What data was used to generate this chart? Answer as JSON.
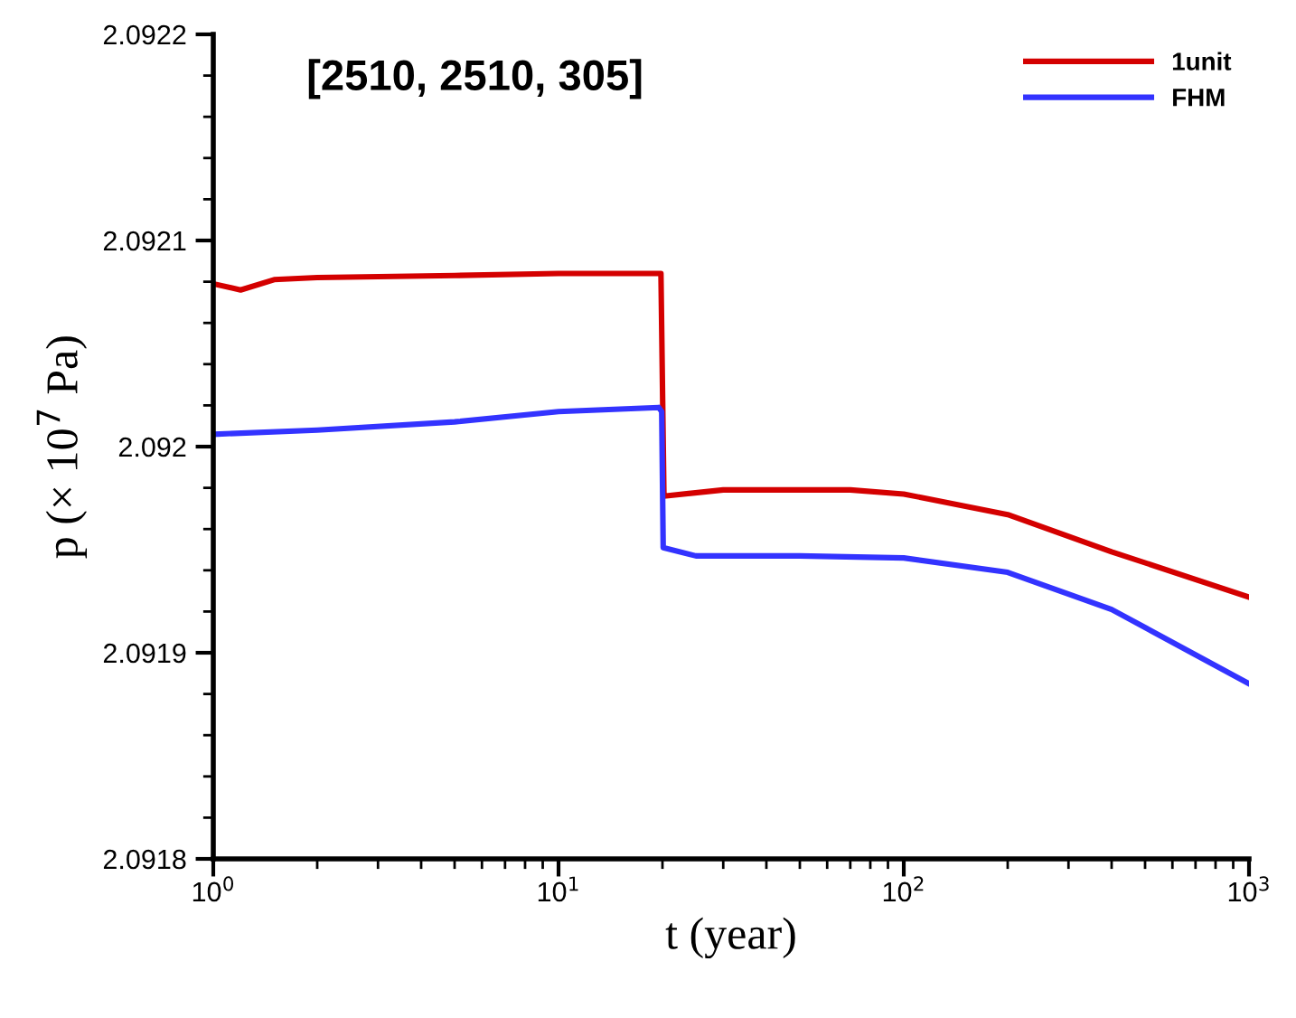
{
  "chart_data": {
    "type": "line",
    "title": "[2510, 2510, 305]",
    "xlabel": "t (year)",
    "ylabel": "p (× 10$^{7}$ Pa)",
    "log": "x",
    "legend": "top right",
    "grid": false,
    "xlim": [
      1,
      1000
    ],
    "xticks": [
      {
        "value": 1,
        "label": "10$^{0}$"
      },
      {
        "value": 10,
        "label": "10$^{1}$"
      },
      {
        "value": 100,
        "label": "10$^{2}$"
      },
      {
        "value": 1000,
        "label": "10$^{3}$"
      }
    ],
    "ylim": [
      2.0918,
      2.0922
    ],
    "yticks": [
      2.0918,
      2.0919,
      2.092,
      2.0921,
      2.0922
    ],
    "series": [
      {
        "name": "1unit",
        "color": "#d40000",
        "x": [
          1,
          1.2,
          1.5,
          2,
          5,
          10,
          19.8,
          20.2,
          30,
          50,
          70,
          100,
          200,
          400,
          1000
        ],
        "values": [
          2.092079,
          2.092076,
          2.092081,
          2.092082,
          2.092083,
          2.092084,
          2.092084,
          2.091976,
          2.091979,
          2.091979,
          2.091979,
          2.091977,
          2.091967,
          2.091949,
          2.091927
        ]
      },
      {
        "name": "FHM",
        "color": "#3333ff",
        "x": [
          1,
          2,
          5,
          10,
          19.5,
          19.9,
          20.1,
          25,
          50,
          100,
          200,
          400,
          1000
        ],
        "values": [
          2.092006,
          2.092008,
          2.092012,
          2.092017,
          2.092019,
          2.092017,
          2.091951,
          2.091947,
          2.091947,
          2.091946,
          2.091939,
          2.091921,
          2.091885
        ]
      }
    ]
  }
}
